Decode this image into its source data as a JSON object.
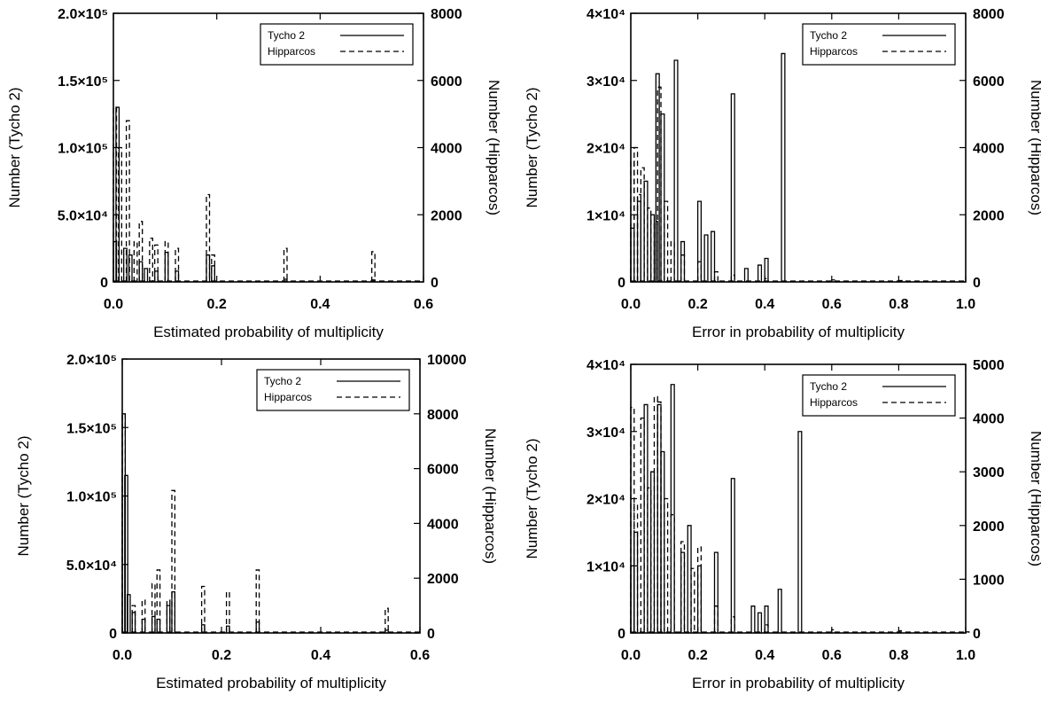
{
  "chart_data": [
    {
      "type": "bar",
      "xlabel": "Estimated probability of multiplicity",
      "ylabel_left": "Number (Tycho 2)",
      "ylabel_right": "Number (Hipparcos)",
      "xlim": [
        0,
        0.6
      ],
      "ylim_left": [
        0,
        200000
      ],
      "ylim_right": [
        0,
        8000
      ],
      "x_ticks": [
        "0.0",
        "0.2",
        "0.4",
        "0.6"
      ],
      "left_ticks": [
        "0",
        "5.0×10⁴",
        "1.0×10⁵",
        "1.5×10⁵",
        "2.0×10⁵"
      ],
      "right_ticks": [
        "0",
        "2000",
        "4000",
        "6000",
        "8000"
      ],
      "legend": {
        "position": "top-right",
        "entries": [
          "Tycho 2",
          "Hipparcos"
        ]
      },
      "series": [
        {
          "name": "Tycho 2",
          "axis": "left",
          "style": "solid",
          "x": [
            0.0,
            0.005,
            0.02,
            0.03,
            0.05,
            0.06,
            0.08,
            0.1,
            0.12,
            0.18,
            0.19,
            0.33,
            0.5
          ],
          "values": [
            30000,
            130000,
            25000,
            20000,
            15000,
            10000,
            8000,
            22000,
            8000,
            20000,
            12000,
            2000,
            1500
          ]
        },
        {
          "name": "Hipparcos",
          "axis": "right",
          "style": "dashed",
          "x": [
            0.0,
            0.01,
            0.025,
            0.04,
            0.05,
            0.07,
            0.08,
            0.1,
            0.12,
            0.18,
            0.19,
            0.33,
            0.5
          ],
          "values": [
            5200,
            4000,
            4800,
            1200,
            1800,
            1300,
            1100,
            1200,
            1000,
            2600,
            800,
            1000,
            900
          ]
        }
      ]
    },
    {
      "type": "bar",
      "xlabel": "Error in probability of multiplicity",
      "ylabel_left": "Number (Tycho 2)",
      "ylabel_right": "Number (Hipparcos)",
      "xlim": [
        0,
        1.0
      ],
      "ylim_left": [
        0,
        40000
      ],
      "ylim_right": [
        0,
        8000
      ],
      "x_ticks": [
        "0.0",
        "0.2",
        "0.4",
        "0.6",
        "0.8",
        "1.0"
      ],
      "left_ticks": [
        "0",
        "1×10⁴",
        "2×10⁴",
        "3×10⁴",
        "4×10⁴"
      ],
      "right_ticks": [
        "0",
        "2000",
        "4000",
        "6000",
        "8000"
      ],
      "legend": {
        "position": "top-right",
        "entries": [
          "Tycho 2",
          "Hipparcos"
        ]
      },
      "series": [
        {
          "name": "Tycho 2",
          "axis": "left",
          "style": "solid",
          "x": [
            0.0,
            0.02,
            0.04,
            0.06,
            0.075,
            0.09,
            0.13,
            0.15,
            0.2,
            0.22,
            0.24,
            0.3,
            0.34,
            0.38,
            0.4,
            0.45
          ],
          "values": [
            8000,
            12000,
            15000,
            10000,
            31000,
            25000,
            33000,
            6000,
            12000,
            7000,
            7500,
            28000,
            2000,
            2500,
            3500,
            34000
          ]
        },
        {
          "name": "Hipparcos",
          "axis": "right",
          "style": "dashed",
          "x": [
            0.0,
            0.01,
            0.02,
            0.03,
            0.05,
            0.07,
            0.08,
            0.1,
            0.12,
            0.15,
            0.2,
            0.25,
            0.3,
            0.4,
            0.6,
            0.8
          ],
          "values": [
            3600,
            4000,
            2600,
            3400,
            2200,
            1800,
            5800,
            2400,
            1200,
            800,
            600,
            300,
            200,
            100,
            60,
            40
          ]
        }
      ]
    },
    {
      "type": "bar",
      "xlabel": "Estimated probability of multiplicity",
      "ylabel_left": "Number (Tycho 2)",
      "ylabel_right": "Number (Hipparcos)",
      "xlim": [
        0,
        0.6
      ],
      "ylim_left": [
        0,
        200000
      ],
      "ylim_right": [
        0,
        10000
      ],
      "x_ticks": [
        "0.0",
        "0.2",
        "0.4",
        "0.6"
      ],
      "left_ticks": [
        "0",
        "5.0×10⁴",
        "1.0×10⁵",
        "1.5×10⁵",
        "2.0×10⁵"
      ],
      "right_ticks": [
        "0",
        "2000",
        "4000",
        "6000",
        "8000",
        "10000"
      ],
      "legend": {
        "position": "top-right",
        "entries": [
          "Tycho 2",
          "Hipparcos"
        ]
      },
      "series": [
        {
          "name": "Tycho 2",
          "axis": "left",
          "style": "solid",
          "x": [
            0.0,
            0.005,
            0.01,
            0.02,
            0.04,
            0.06,
            0.07,
            0.09,
            0.1,
            0.16,
            0.21,
            0.27,
            0.53
          ],
          "values": [
            160000,
            115000,
            28000,
            15000,
            10000,
            12000,
            10000,
            20000,
            30000,
            6000,
            5000,
            8000,
            2000
          ]
        },
        {
          "name": "Hipparcos",
          "axis": "right",
          "style": "dashed",
          "x": [
            0.0,
            0.02,
            0.04,
            0.06,
            0.07,
            0.09,
            0.1,
            0.16,
            0.21,
            0.27,
            0.53
          ],
          "values": [
            8000,
            1000,
            1200,
            1800,
            2300,
            1200,
            5200,
            1700,
            1500,
            2300,
            900
          ]
        }
      ]
    },
    {
      "type": "bar",
      "xlabel": "Error in probability of multiplicity",
      "ylabel_left": "Number (Tycho 2)",
      "ylabel_right": "Number (Hipparcos)",
      "xlim": [
        0,
        1.0
      ],
      "ylim_left": [
        0,
        40000
      ],
      "ylim_right": [
        0,
        5000
      ],
      "x_ticks": [
        "0.0",
        "0.2",
        "0.4",
        "0.6",
        "0.8",
        "1.0"
      ],
      "left_ticks": [
        "0",
        "1×10⁴",
        "2×10⁴",
        "3×10⁴",
        "4×10⁴"
      ],
      "right_ticks": [
        "0",
        "1000",
        "2000",
        "3000",
        "4000",
        "5000"
      ],
      "legend": {
        "position": "top-right",
        "entries": [
          "Tycho 2",
          "Hipparcos"
        ]
      },
      "series": [
        {
          "name": "Tycho 2",
          "axis": "left",
          "style": "solid",
          "x": [
            0.0,
            0.01,
            0.04,
            0.06,
            0.08,
            0.09,
            0.12,
            0.15,
            0.17,
            0.2,
            0.25,
            0.3,
            0.36,
            0.38,
            0.4,
            0.44,
            0.5
          ],
          "values": [
            10000,
            15000,
            34000,
            24000,
            34000,
            27000,
            37000,
            12000,
            16000,
            10000,
            12000,
            23000,
            4000,
            3000,
            4000,
            6500,
            30000
          ]
        },
        {
          "name": "Hipparcos",
          "axis": "right",
          "style": "dashed",
          "x": [
            0.0,
            0.01,
            0.03,
            0.05,
            0.07,
            0.08,
            0.1,
            0.12,
            0.15,
            0.18,
            0.2,
            0.25,
            0.3,
            0.4,
            0.6,
            0.8,
            1.0
          ],
          "values": [
            4200,
            2400,
            4000,
            2700,
            4400,
            4300,
            2500,
            2200,
            1700,
            1200,
            1600,
            500,
            300,
            150,
            60,
            40,
            20
          ]
        }
      ]
    }
  ]
}
